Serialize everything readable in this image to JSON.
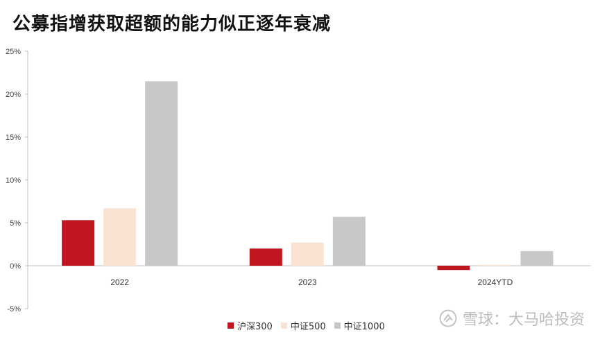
{
  "title": "公募指增获取超额的能力似正逐年衰减",
  "chart_data": {
    "type": "bar",
    "categories": [
      "2022",
      "2023",
      "2024YTD"
    ],
    "series": [
      {
        "name": "沪深300",
        "values": [
          5.3,
          2.0,
          -0.5
        ],
        "color": "#c0161f"
      },
      {
        "name": "中证500",
        "values": [
          6.7,
          2.7,
          0.1
        ],
        "color": "#fbe3d3"
      },
      {
        "name": "中证1000",
        "values": [
          21.5,
          5.7,
          1.7
        ],
        "color": "#c9c7c8"
      }
    ],
    "ylim": [
      -5,
      25
    ],
    "yticks": [
      25,
      20,
      15,
      10,
      5,
      0,
      -5
    ],
    "ytick_labels": [
      "25%",
      "20%",
      "15%",
      "10%",
      "5%",
      "0%",
      "-5%"
    ],
    "legend_position": "bottom"
  },
  "watermark": {
    "text": "雪球：大马哈投资",
    "icon": "snowball-logo-icon"
  }
}
